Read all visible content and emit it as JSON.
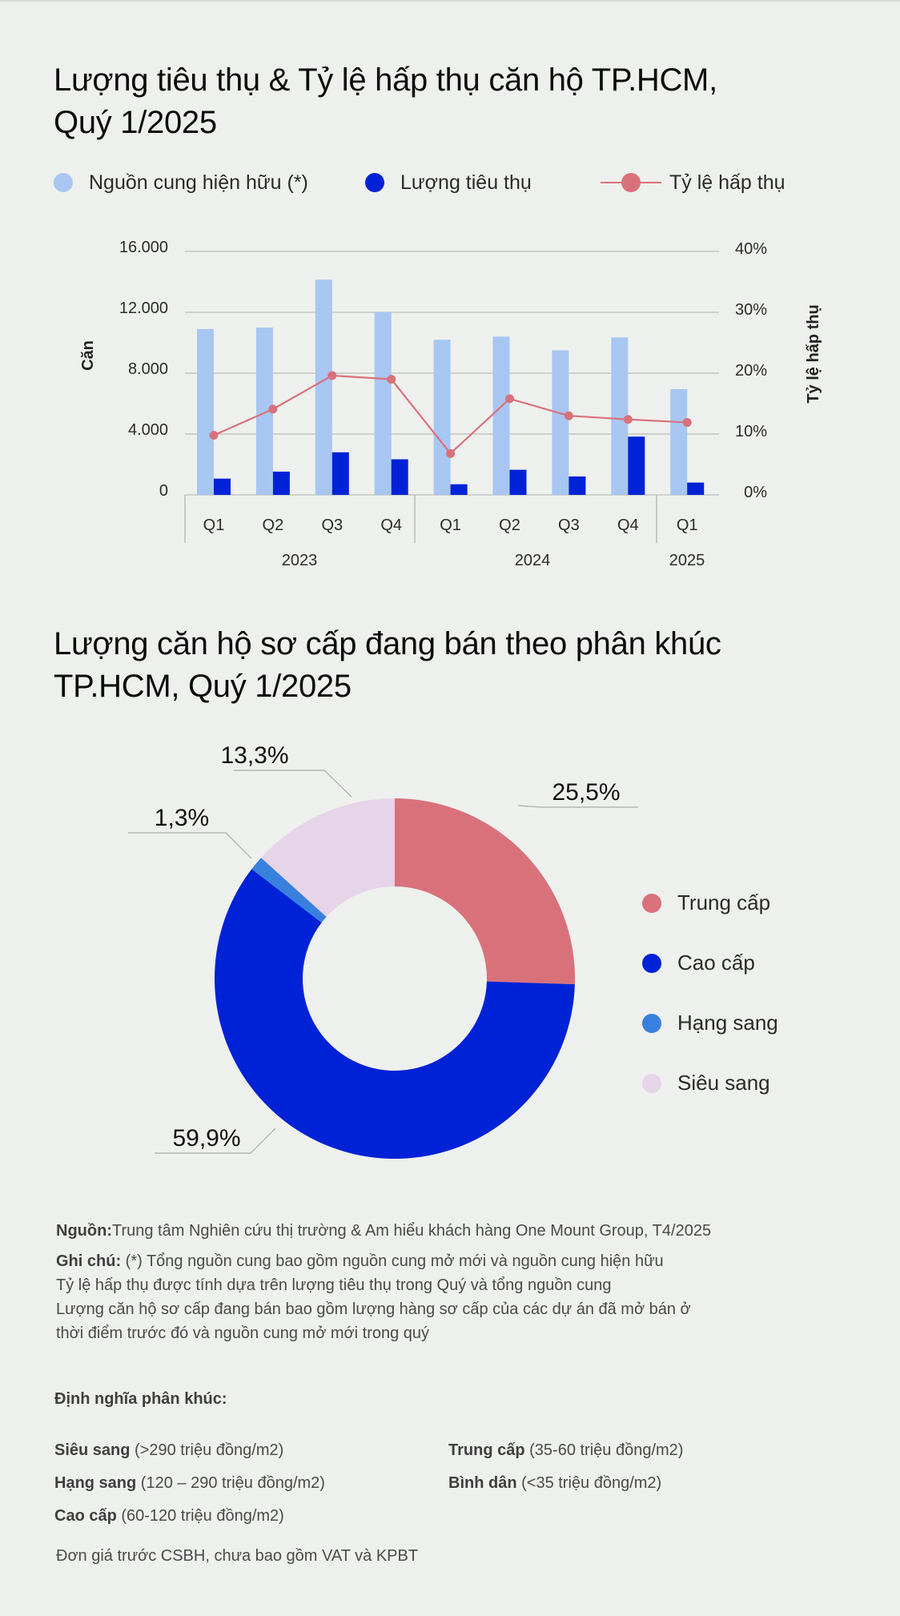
{
  "section1": {
    "title_line1": "Lượng tiêu thụ & Tỷ lệ hấp thụ căn hộ TP.HCM,",
    "title_line2": "Quý 1/2025",
    "legend": [
      {
        "label": "Nguồn cung hiện hữu (*)",
        "color": "#a8c6f2",
        "type": "dot"
      },
      {
        "label": "Lượng tiêu thụ",
        "color": "#0022d6",
        "type": "dot"
      },
      {
        "label": "Tỷ lệ hấp thụ",
        "color": "#d9717b",
        "type": "line"
      }
    ]
  },
  "section2": {
    "title_line1": "Lượng căn hộ sơ cấp đang bán theo phân khúc",
    "title_line2": "TP.HCM, Quý 1/2025",
    "legend": [
      {
        "label": "Trung cấp",
        "color": "#d9717b"
      },
      {
        "label": "Cao cấp",
        "color": "#0022d6"
      },
      {
        "label": "Hạng sang",
        "color": "#3880de"
      },
      {
        "label": "Siêu sang",
        "color": "#e6d4e8"
      }
    ]
  },
  "chart_data": [
    {
      "type": "bar",
      "title": "Lượng tiêu thụ & Tỷ lệ hấp thụ căn hộ TP.HCM, Quý 1/2025",
      "categories": [
        "Q1",
        "Q2",
        "Q3",
        "Q4",
        "Q1",
        "Q2",
        "Q3",
        "Q4",
        "Q1"
      ],
      "category_groups": [
        {
          "label": "2023",
          "count": 4
        },
        {
          "label": "2024",
          "count": 4
        },
        {
          "label": "2025",
          "count": 1
        }
      ],
      "series": [
        {
          "name": "Nguồn cung hiện hữu (*)",
          "type": "bar",
          "axis": "left",
          "color": "#a8c6f2",
          "values": [
            10900,
            11000,
            14150,
            12000,
            10200,
            10400,
            9500,
            10350,
            6950
          ]
        },
        {
          "name": "Lượng tiêu thụ",
          "type": "bar",
          "axis": "left",
          "color": "#0022d6",
          "values": [
            1070,
            1530,
            2800,
            2340,
            700,
            1650,
            1210,
            3830,
            810
          ]
        },
        {
          "name": "Tỷ lệ hấp thụ",
          "type": "line",
          "axis": "right",
          "color": "#d9717b",
          "values": [
            9.8,
            14.1,
            19.6,
            19.0,
            6.8,
            15.8,
            13.0,
            12.4,
            11.9
          ]
        }
      ],
      "ylabel": "Căn",
      "y2label": "Tỷ lệ hấp thụ",
      "ylim": [
        0,
        16000
      ],
      "y2lim": [
        0,
        40
      ],
      "yticks": [
        "0",
        "4.000",
        "8.000",
        "12.000",
        "16.000"
      ],
      "y2ticks": [
        "0%",
        "10%",
        "20%",
        "30%",
        "40%"
      ],
      "grid": true,
      "legend_position": "top"
    },
    {
      "type": "pie",
      "subtype": "donut",
      "title": "Lượng căn hộ sơ cấp đang bán theo phân khúc TP.HCM, Quý 1/2025",
      "categories": [
        "Trung cấp",
        "Cao cấp",
        "Hạng sang",
        "Siêu sang"
      ],
      "values": [
        25.5,
        59.9,
        1.3,
        13.3
      ],
      "labels": [
        "25,5%",
        "59,9%",
        "1,3%",
        "13,3%"
      ],
      "colors": [
        "#d9717b",
        "#0022d6",
        "#3880de",
        "#e6d4e8"
      ],
      "legend_position": "right"
    }
  ],
  "notes": {
    "source_label": "Nguồn:",
    "source_text": "Trung tâm Nghiên cứu thị trường & Am hiểu khách hàng One Mount Group, T4/2025",
    "note_label": "Ghi chú:",
    "note_line1": " (*) Tổng nguồn cung bao gồm nguồn cung mở mới và nguồn cung hiện hữu",
    "note_line2": "Tỷ lệ hấp thụ được tính dựa trên lượng tiêu thụ trong Quý và tổng nguồn cung",
    "note_line3": "Lượng căn hộ sơ cấp đang bán bao gồm lượng hàng sơ cấp của các dự án đã mở bán ở",
    "note_line4": "thời điểm trước đó và nguồn cung mở mới trong quý"
  },
  "definitions": {
    "header": "Định nghĩa phân khúc:",
    "items": [
      {
        "name": "Siêu sang",
        "range": " (>290 triệu đồng/m2)"
      },
      {
        "name": "Hạng sang",
        "range": " (120 – 290 triệu đồng/m2)"
      },
      {
        "name": "Cao cấp",
        "range": " (60-120 triệu đồng/m2)"
      },
      {
        "name": "Trung cấp",
        "range": " (35-60 triệu đồng/m2)"
      },
      {
        "name": "Bình dân",
        "range": " (<35 triệu đồng/m2)"
      }
    ],
    "footer": "Đơn giá trước CSBH, chưa bao gồm VAT và KPBT"
  }
}
